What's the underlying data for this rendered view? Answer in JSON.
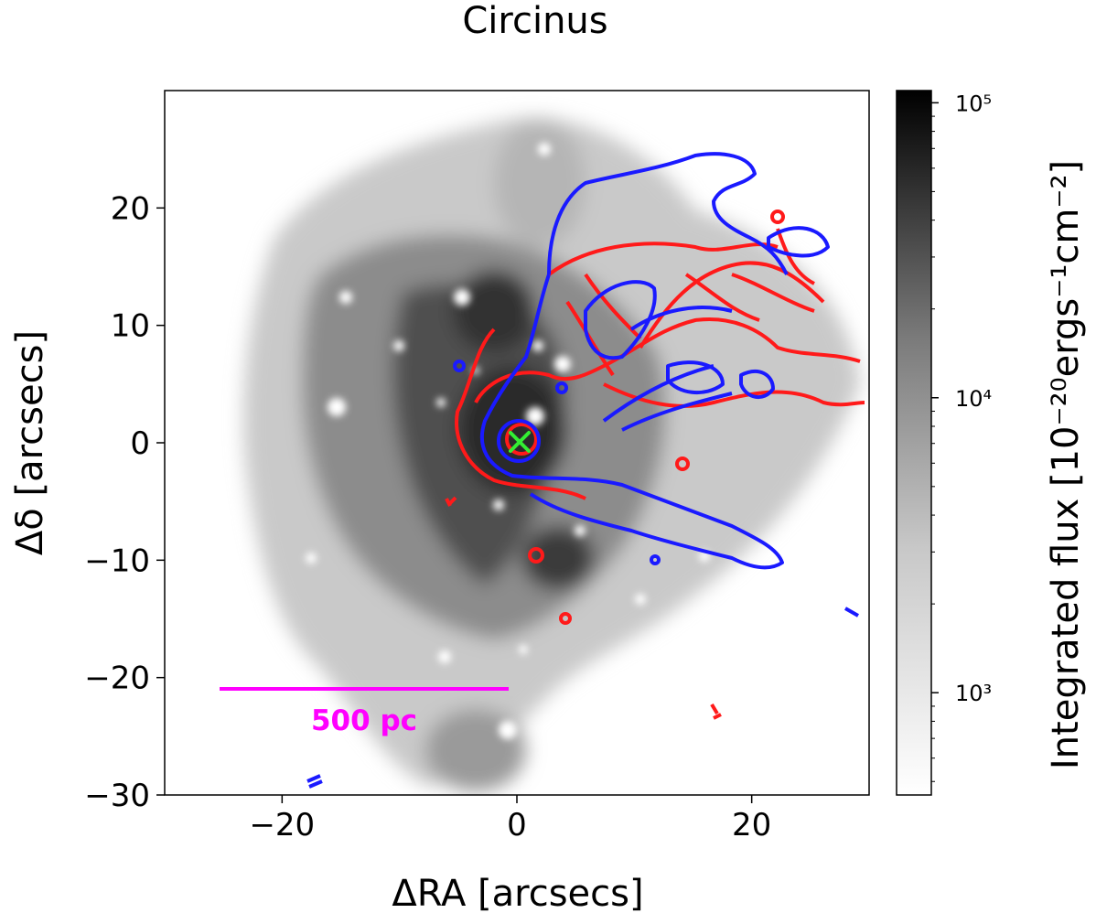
{
  "chart_data": {
    "type": "heatmap",
    "title": "Circinus",
    "xlabel": "ΔRA [arcsecs]",
    "ylabel": "Δδ [arcsecs]",
    "xlim": [
      -30,
      30
    ],
    "ylim": [
      -30,
      30
    ],
    "x_ticks": [
      -20,
      0,
      20
    ],
    "x_tick_labels": [
      "−20",
      "0",
      "20"
    ],
    "y_ticks": [
      -30,
      -20,
      -10,
      0,
      10,
      20
    ],
    "y_tick_labels": [
      "−30",
      "−20",
      "−10",
      "0",
      "10",
      "20"
    ],
    "grid": false,
    "colormap": "Greys",
    "colorbar": {
      "label": "Integrated flux [10⁻²⁰ergs⁻¹cm⁻²]",
      "scale": "log",
      "range": [
        450,
        110000
      ],
      "major_ticks": [
        1000,
        10000,
        100000
      ],
      "major_tick_labels": [
        "10³",
        "10⁴",
        "10⁵"
      ]
    },
    "contours": [
      {
        "color": "#ff1a1a",
        "description": "redshifted velocity contours"
      },
      {
        "color": "#1a1aff",
        "description": "blueshifted velocity contours"
      }
    ],
    "nucleus_marker": {
      "x": 0,
      "y": 0,
      "symbol": "×",
      "color": "#33ee33"
    },
    "scale_bar": {
      "label": "500 pc",
      "x_start": -25.5,
      "x_end": -0.8,
      "y": -21,
      "color": "#ff00ff"
    }
  }
}
